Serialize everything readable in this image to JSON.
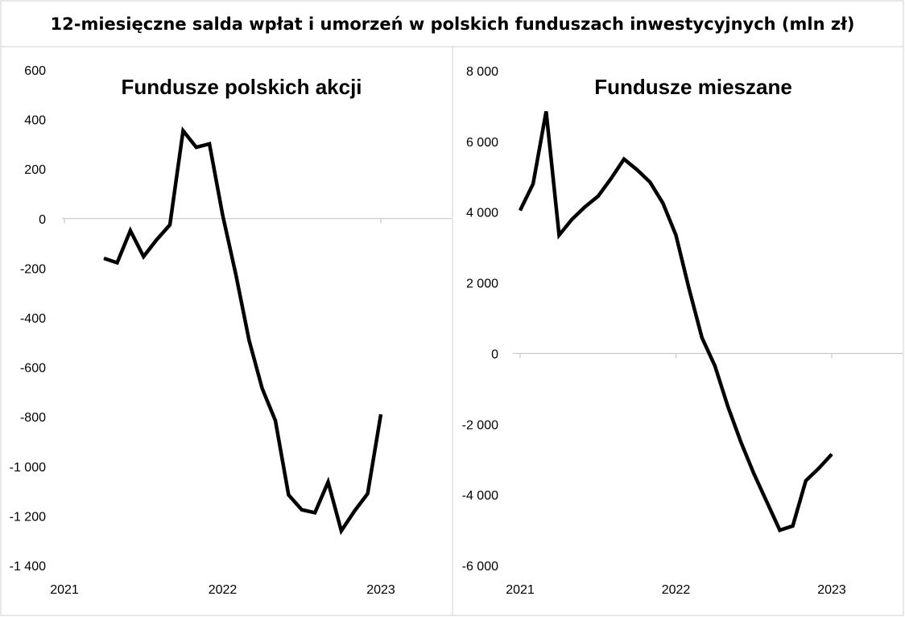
{
  "title": "12-miesięczne salda wpłat i umorzeń w polskich funduszach inwestycyjnych (mln zł)",
  "chart_data": [
    {
      "type": "line",
      "title": "Fundusze polskich akcji",
      "xlabel": "",
      "ylabel": "",
      "ylim": [
        -1400,
        600
      ],
      "y_ticks": [
        600,
        400,
        200,
        0,
        -200,
        -400,
        -600,
        -800,
        -1000,
        -1200,
        -1400
      ],
      "y_tick_labels": [
        "600",
        "400",
        "200",
        "0",
        "-200",
        "-400",
        "-600",
        "-800",
        "-1 000",
        "-1 200",
        "-1 400"
      ],
      "x_ticks": [
        "2021",
        "2022",
        "2023"
      ],
      "grid": false,
      "series": [
        {
          "color": "#000000",
          "x": [
            "2021-04",
            "2021-05",
            "2021-06",
            "2021-07",
            "2021-08",
            "2021-09",
            "2021-10",
            "2021-11",
            "2021-12",
            "2022-01",
            "2022-02",
            "2022-03",
            "2022-04",
            "2022-05",
            "2022-06",
            "2022-07",
            "2022-08",
            "2022-09",
            "2022-10",
            "2022-11",
            "2022-12",
            "2023-01"
          ],
          "values": [
            -160,
            -178,
            -48,
            -153,
            -85,
            -25,
            355,
            288,
            302,
            15,
            -225,
            -490,
            -685,
            -815,
            -1115,
            -1175,
            -1187,
            -1063,
            -1260,
            -1180,
            -1110,
            -790
          ]
        }
      ]
    },
    {
      "type": "line",
      "title": "Fundusze mieszane",
      "xlabel": "",
      "ylabel": "",
      "ylim": [
        -6000,
        8000
      ],
      "y_ticks": [
        8000,
        6000,
        4000,
        2000,
        0,
        -2000,
        -4000,
        -6000
      ],
      "y_tick_labels": [
        "8 000",
        "6 000",
        "4 000",
        "2 000",
        "0",
        "-2 000",
        "-4 000",
        "-6 000"
      ],
      "x_ticks": [
        "2021",
        "2022",
        "2023"
      ],
      "grid": false,
      "series": [
        {
          "color": "#000000",
          "x": [
            "2021-01",
            "2021-02",
            "2021-03",
            "2021-04",
            "2021-05",
            "2021-06",
            "2021-07",
            "2021-08",
            "2021-09",
            "2021-10",
            "2021-11",
            "2021-12",
            "2022-01",
            "2022-02",
            "2022-03",
            "2022-04",
            "2022-05",
            "2022-06",
            "2022-07",
            "2022-08",
            "2022-09",
            "2022-10",
            "2022-11",
            "2022-12",
            "2023-01"
          ],
          "values": [
            4050,
            4800,
            6850,
            3350,
            3800,
            4150,
            4450,
            4950,
            5500,
            5200,
            4850,
            4250,
            3350,
            1850,
            450,
            -350,
            -1500,
            -2500,
            -3400,
            -4200,
            -5000,
            -4880,
            -3600,
            -3250,
            -2850
          ]
        }
      ]
    }
  ]
}
